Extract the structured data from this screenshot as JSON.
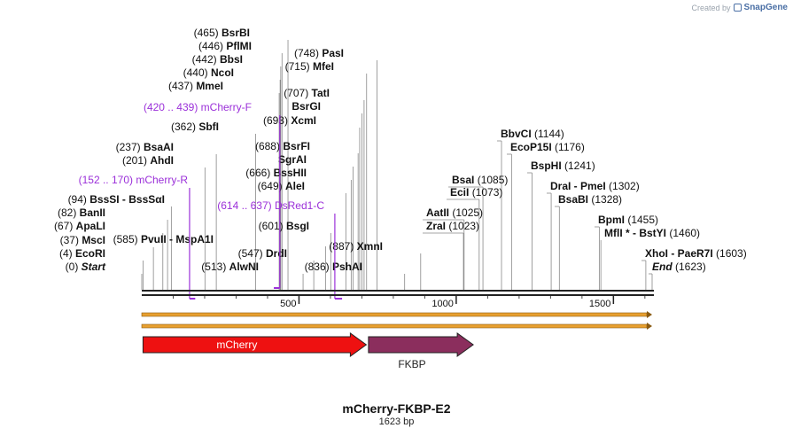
{
  "brand": {
    "created_by": "Created by",
    "product": "SnapGene"
  },
  "map": {
    "title": "mCherry-FKBP-E2",
    "length_label": "1623 bp",
    "length": 1623,
    "colors": {
      "primer": "#9b30d9",
      "feature_mcherry": "#ee1111",
      "feature_fkbp": "#8b2e5d",
      "orf": "#e8a030",
      "text": "#111111",
      "line": "#888888"
    },
    "ticks": [
      {
        "pos": 500,
        "label": "500"
      },
      {
        "pos": 1000,
        "label": "1000"
      },
      {
        "pos": 1500,
        "label": "1500"
      }
    ],
    "enzymes": [
      {
        "pos": "(0)",
        "name": "Start",
        "bp": 0,
        "italic": true
      },
      {
        "pos": "(4)",
        "name": "EcoRI",
        "bp": 4
      },
      {
        "pos": "(37)",
        "name": "MscI",
        "bp": 37
      },
      {
        "pos": "(67)",
        "name": "ApaLI",
        "bp": 67
      },
      {
        "pos": "(82)",
        "name": "BanII",
        "bp": 82
      },
      {
        "pos": "(94)",
        "name": "BssSI  -  BssSαI",
        "bp": 94
      },
      {
        "pos": "(201)",
        "name": "AhdI",
        "bp": 201
      },
      {
        "pos": "(237)",
        "name": "BsaAI",
        "bp": 237
      },
      {
        "pos": "(362)",
        "name": "SbfI",
        "bp": 362
      },
      {
        "pos": "(437)",
        "name": "MmeI",
        "bp": 437
      },
      {
        "pos": "(440)",
        "name": "NcoI",
        "bp": 440
      },
      {
        "pos": "(442)",
        "name": "BbsI",
        "bp": 442
      },
      {
        "pos": "(446)",
        "name": "PflMI",
        "bp": 446
      },
      {
        "pos": "(465)",
        "name": "BsrBI",
        "bp": 465
      },
      {
        "pos": "(513)",
        "name": "AlwNI",
        "bp": 513
      },
      {
        "pos": "(547)",
        "name": "DrdI",
        "bp": 547
      },
      {
        "pos": "(585)",
        "name": "PvuII  -  MspA1I",
        "bp": 585
      },
      {
        "pos": "(601)",
        "name": "BsgI",
        "bp": 601
      },
      {
        "pos": "(649)",
        "name": "AleI",
        "bp": 649
      },
      {
        "pos": "(666)",
        "name": "BssHII",
        "bp": 666
      },
      {
        "pos": "",
        "name": "SgrAI",
        "bp": 672
      },
      {
        "pos": "(688)",
        "name": "BsrFI",
        "bp": 688
      },
      {
        "pos": "(693)",
        "name": "XcmI",
        "bp": 693
      },
      {
        "pos": "",
        "name": "BsrGI",
        "bp": 700
      },
      {
        "pos": "(707)",
        "name": "TatI",
        "bp": 707
      },
      {
        "pos": "(715)",
        "name": "MfeI",
        "bp": 715
      },
      {
        "pos": "(748)",
        "name": "PasI",
        "bp": 748
      },
      {
        "pos": "(836)",
        "name": "PshAI",
        "bp": 836
      },
      {
        "pos": "(887)",
        "name": "XmnI",
        "bp": 887
      },
      {
        "pos": "(1023)",
        "name": "ZraI",
        "bp": 1023
      },
      {
        "pos": "(1025)",
        "name": "AatII",
        "bp": 1025
      },
      {
        "pos": "(1073)",
        "name": "EciI",
        "bp": 1073
      },
      {
        "pos": "(1085)",
        "name": "BsaI",
        "bp": 1085
      },
      {
        "pos": "(1144)",
        "name": "BbvCI",
        "bp": 1144
      },
      {
        "pos": "(1176)",
        "name": "EcoP15I",
        "bp": 1176
      },
      {
        "pos": "(1241)",
        "name": "BspHI",
        "bp": 1241
      },
      {
        "pos": "(1302)",
        "name": "DraI  -  PmeI",
        "bp": 1302
      },
      {
        "pos": "(1328)",
        "name": "BsaBI",
        "bp": 1328
      },
      {
        "pos": "(1455)",
        "name": "BpmI",
        "bp": 1455
      },
      {
        "pos": "(1460)",
        "name": "MflI *  -  BstYI",
        "bp": 1460
      },
      {
        "pos": "(1603)",
        "name": "XhoI  -  PaeR7I",
        "bp": 1603
      },
      {
        "pos": "(1623)",
        "name": "End",
        "bp": 1623,
        "italic": true
      }
    ],
    "primers": [
      {
        "range": "(152 .. 170)",
        "name": "mCherry-R",
        "start": 152,
        "end": 170,
        "direction": "reverse"
      },
      {
        "range": "(420 .. 439)",
        "name": "mCherry-F",
        "start": 420,
        "end": 439,
        "direction": "forward"
      },
      {
        "range": "(614 .. 637)",
        "name": "DsRed1-C",
        "start": 614,
        "end": 637,
        "direction": "reverse"
      }
    ],
    "features": [
      {
        "name": "mCherry",
        "start": 4,
        "end": 714,
        "label_inside": true
      },
      {
        "name": "FKBP",
        "start": 721,
        "end": 1040,
        "label_inside": false
      }
    ]
  }
}
